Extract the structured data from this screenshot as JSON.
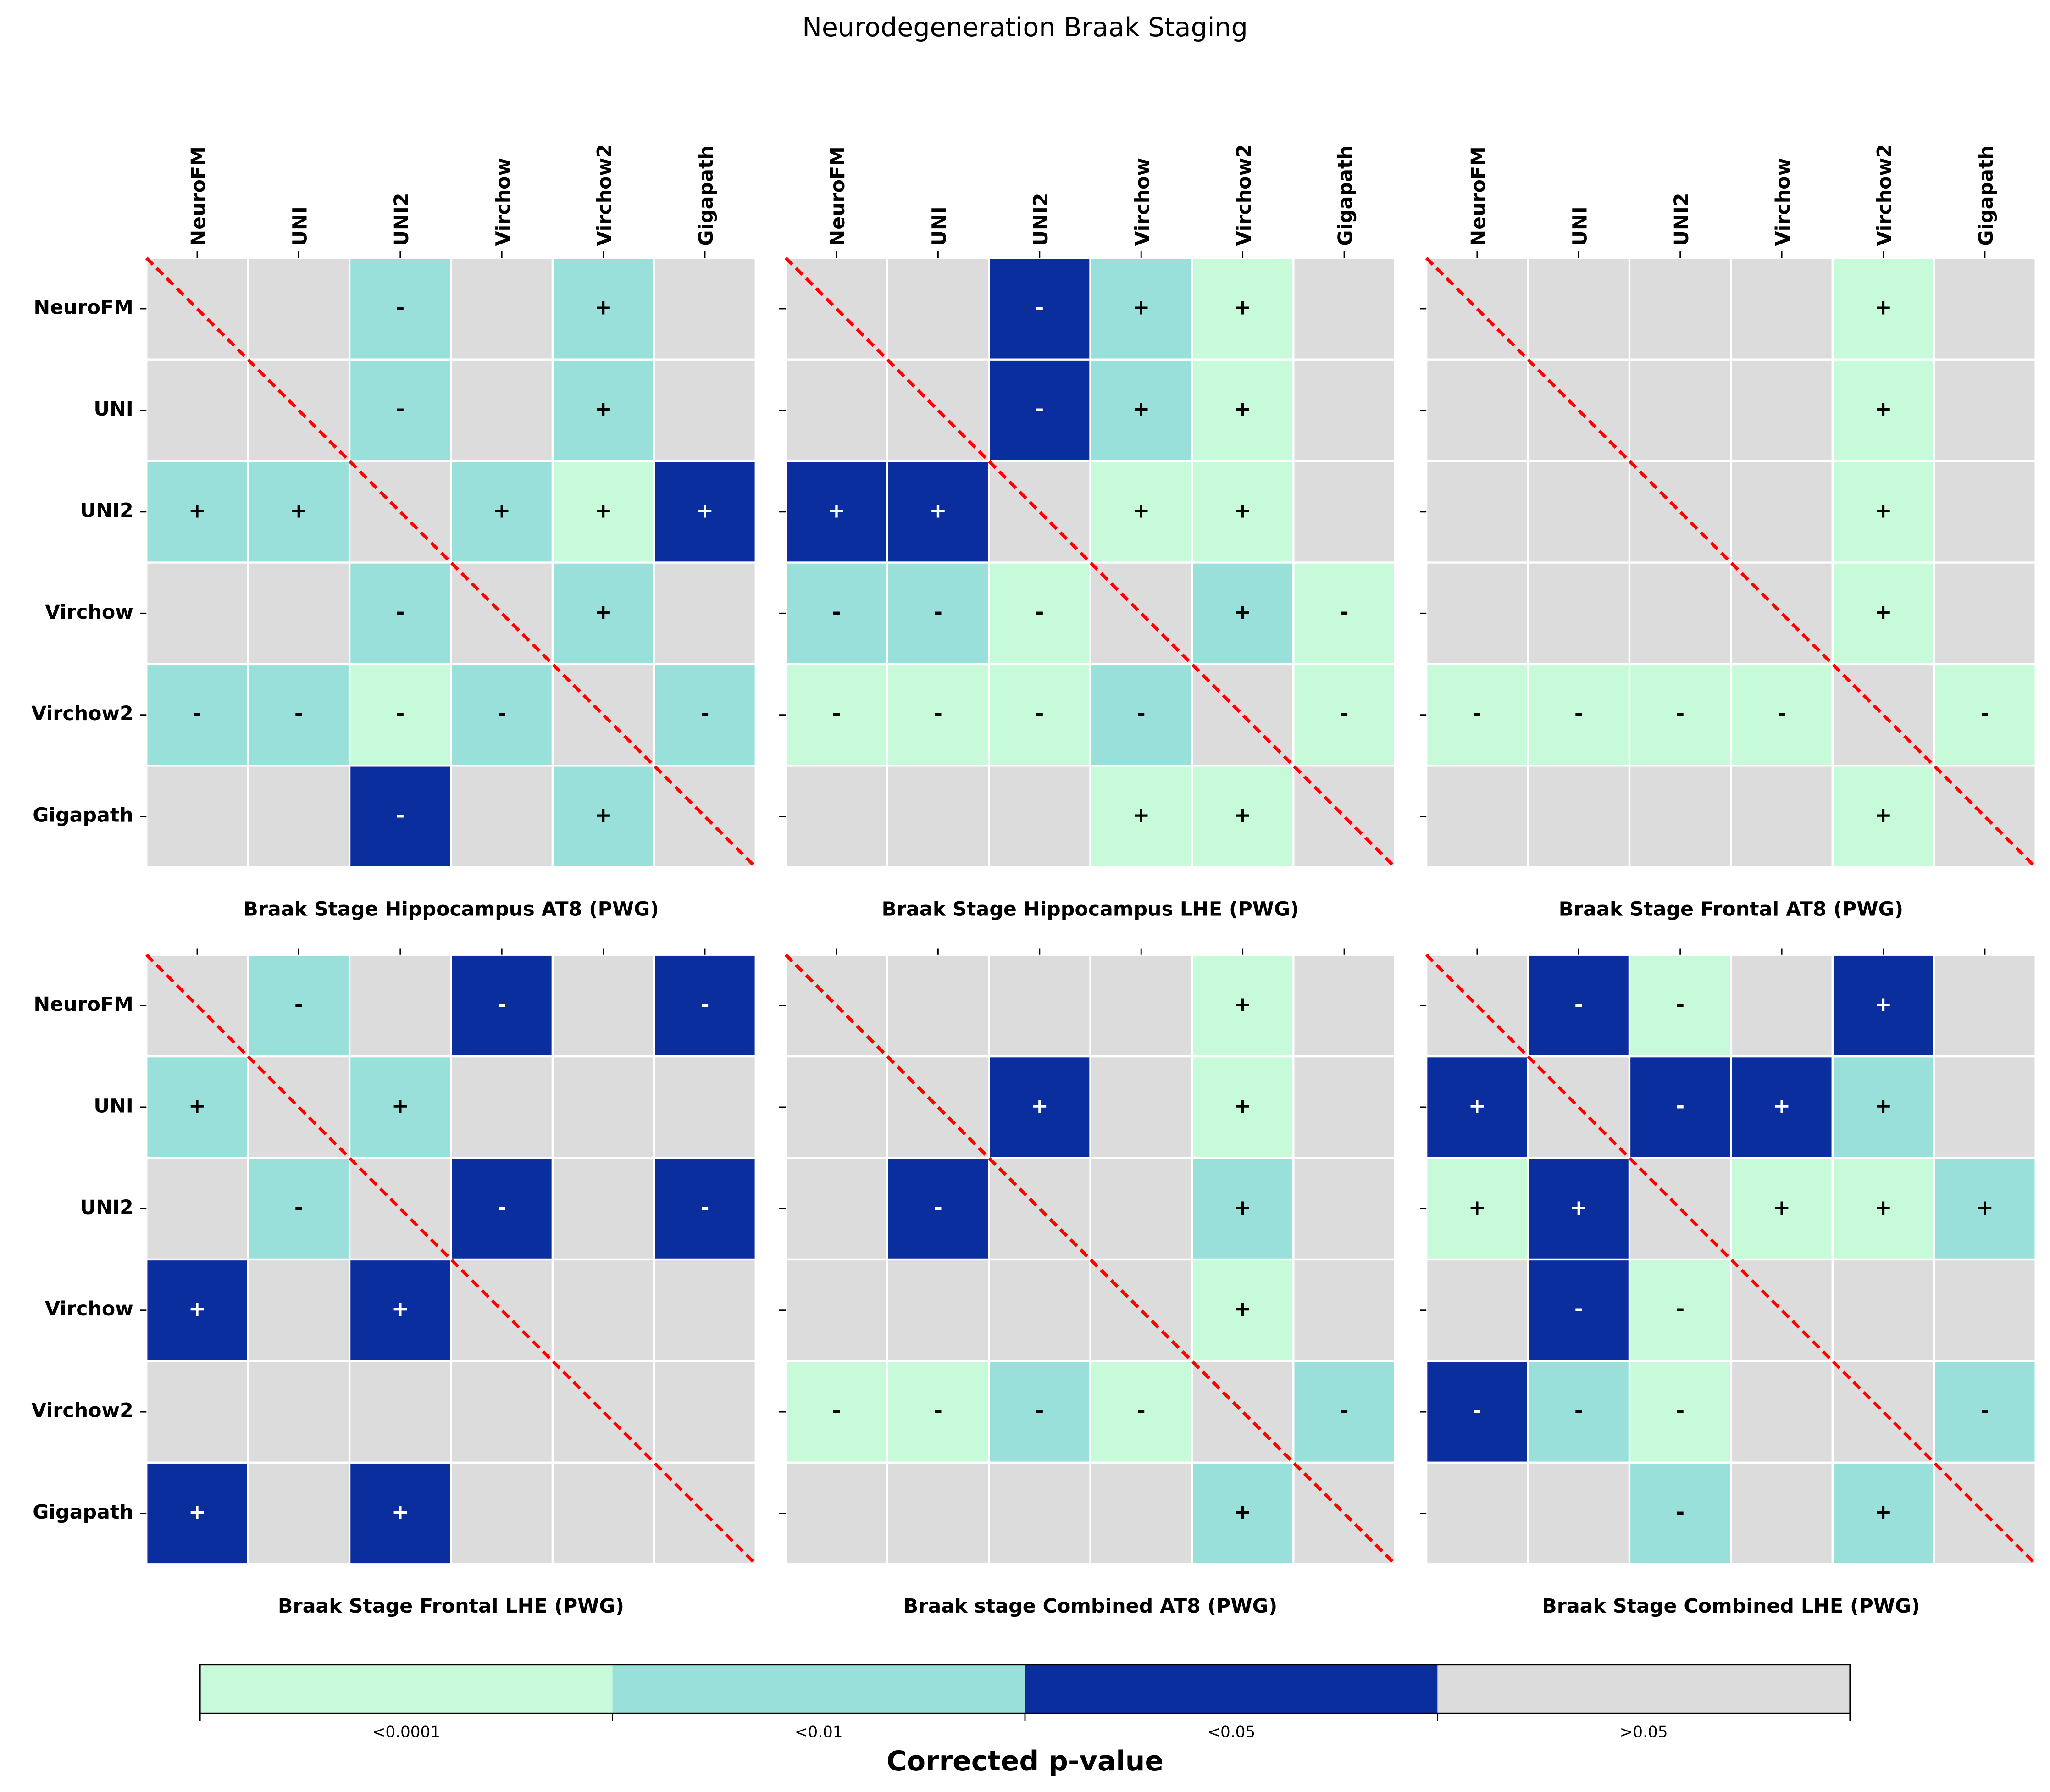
{
  "chart_data": {
    "type": "heatmap",
    "title": "Neurodegeneration Braak Staging",
    "categories": [
      "NeuroFM",
      "UNI",
      "UNI2",
      "Virchow",
      "Virchow2",
      "Gigapath"
    ],
    "legend_title": "Corrected p-value",
    "legend": [
      {
        "label": "<0.0001",
        "color": "#c7fad8"
      },
      {
        "label": "<0.01",
        "color": "#99e0da"
      },
      {
        "label": "<0.05",
        "color": "#0b2e9f"
      },
      {
        "label": ">0.05",
        "color": "#dcdcdc"
      }
    ],
    "diagonal_color": "#ff0000",
    "panels": [
      {
        "title": "Braak Stage Hippocampus AT8 (PWG)",
        "levels": [
          [
            ">0.05",
            ">0.05",
            "<0.01",
            ">0.05",
            "<0.01",
            ">0.05"
          ],
          [
            ">0.05",
            ">0.05",
            "<0.01",
            ">0.05",
            "<0.01",
            ">0.05"
          ],
          [
            "<0.01",
            "<0.01",
            ">0.05",
            "<0.01",
            "<0.0001",
            "<0.05"
          ],
          [
            ">0.05",
            ">0.05",
            "<0.01",
            ">0.05",
            "<0.01",
            ">0.05"
          ],
          [
            "<0.01",
            "<0.01",
            "<0.0001",
            "<0.01",
            ">0.05",
            "<0.01"
          ],
          [
            ">0.05",
            ">0.05",
            "<0.05",
            ">0.05",
            "<0.01",
            ">0.05"
          ]
        ],
        "signs": [
          [
            null,
            null,
            "-",
            null,
            "+",
            null
          ],
          [
            null,
            null,
            "-",
            null,
            "+",
            null
          ],
          [
            "+",
            "+",
            null,
            "+",
            "+",
            "+"
          ],
          [
            null,
            null,
            "-",
            null,
            "+",
            null
          ],
          [
            "-",
            "-",
            "-",
            "-",
            null,
            "-"
          ],
          [
            null,
            null,
            "-",
            null,
            "+",
            null
          ]
        ]
      },
      {
        "title": "Braak Stage Hippocampus LHE (PWG)",
        "levels": [
          [
            ">0.05",
            ">0.05",
            "<0.05",
            "<0.01",
            "<0.0001",
            ">0.05"
          ],
          [
            ">0.05",
            ">0.05",
            "<0.05",
            "<0.01",
            "<0.0001",
            ">0.05"
          ],
          [
            "<0.05",
            "<0.05",
            ">0.05",
            "<0.0001",
            "<0.0001",
            ">0.05"
          ],
          [
            "<0.01",
            "<0.01",
            "<0.0001",
            ">0.05",
            "<0.01",
            "<0.0001"
          ],
          [
            "<0.0001",
            "<0.0001",
            "<0.0001",
            "<0.01",
            ">0.05",
            "<0.0001"
          ],
          [
            ">0.05",
            ">0.05",
            ">0.05",
            "<0.0001",
            "<0.0001",
            ">0.05"
          ]
        ],
        "signs": [
          [
            null,
            null,
            "-",
            "+",
            "+",
            null
          ],
          [
            null,
            null,
            "-",
            "+",
            "+",
            null
          ],
          [
            "+",
            "+",
            null,
            "+",
            "+",
            null
          ],
          [
            "-",
            "-",
            "-",
            null,
            "+",
            "-"
          ],
          [
            "-",
            "-",
            "-",
            "-",
            null,
            "-"
          ],
          [
            null,
            null,
            null,
            "+",
            "+",
            null
          ]
        ]
      },
      {
        "title": "Braak Stage Frontal AT8 (PWG)",
        "levels": [
          [
            ">0.05",
            ">0.05",
            ">0.05",
            ">0.05",
            "<0.0001",
            ">0.05"
          ],
          [
            ">0.05",
            ">0.05",
            ">0.05",
            ">0.05",
            "<0.0001",
            ">0.05"
          ],
          [
            ">0.05",
            ">0.05",
            ">0.05",
            ">0.05",
            "<0.0001",
            ">0.05"
          ],
          [
            ">0.05",
            ">0.05",
            ">0.05",
            ">0.05",
            "<0.0001",
            ">0.05"
          ],
          [
            "<0.0001",
            "<0.0001",
            "<0.0001",
            "<0.0001",
            ">0.05",
            "<0.0001"
          ],
          [
            ">0.05",
            ">0.05",
            ">0.05",
            ">0.05",
            "<0.0001",
            ">0.05"
          ]
        ],
        "signs": [
          [
            null,
            null,
            null,
            null,
            "+",
            null
          ],
          [
            null,
            null,
            null,
            null,
            "+",
            null
          ],
          [
            null,
            null,
            null,
            null,
            "+",
            null
          ],
          [
            null,
            null,
            null,
            null,
            "+",
            null
          ],
          [
            "-",
            "-",
            "-",
            "-",
            null,
            "-"
          ],
          [
            null,
            null,
            null,
            null,
            "+",
            null
          ]
        ]
      },
      {
        "title": "Braak Stage Frontal LHE (PWG)",
        "levels": [
          [
            ">0.05",
            "<0.01",
            ">0.05",
            "<0.05",
            ">0.05",
            "<0.05"
          ],
          [
            "<0.01",
            ">0.05",
            "<0.01",
            ">0.05",
            ">0.05",
            ">0.05"
          ],
          [
            ">0.05",
            "<0.01",
            ">0.05",
            "<0.05",
            ">0.05",
            "<0.05"
          ],
          [
            "<0.05",
            ">0.05",
            "<0.05",
            ">0.05",
            ">0.05",
            ">0.05"
          ],
          [
            ">0.05",
            ">0.05",
            ">0.05",
            ">0.05",
            ">0.05",
            ">0.05"
          ],
          [
            "<0.05",
            ">0.05",
            "<0.05",
            ">0.05",
            ">0.05",
            ">0.05"
          ]
        ],
        "signs": [
          [
            null,
            "-",
            null,
            "-",
            null,
            "-"
          ],
          [
            "+",
            null,
            "+",
            null,
            null,
            null
          ],
          [
            null,
            "-",
            null,
            "-",
            null,
            "-"
          ],
          [
            "+",
            null,
            "+",
            null,
            null,
            null
          ],
          [
            null,
            null,
            null,
            null,
            null,
            null
          ],
          [
            "+",
            null,
            "+",
            null,
            null,
            null
          ]
        ]
      },
      {
        "title": "Braak stage Combined AT8 (PWG)",
        "levels": [
          [
            ">0.05",
            ">0.05",
            ">0.05",
            ">0.05",
            "<0.0001",
            ">0.05"
          ],
          [
            ">0.05",
            ">0.05",
            "<0.05",
            ">0.05",
            "<0.0001",
            ">0.05"
          ],
          [
            ">0.05",
            "<0.05",
            ">0.05",
            ">0.05",
            "<0.01",
            ">0.05"
          ],
          [
            ">0.05",
            ">0.05",
            ">0.05",
            ">0.05",
            "<0.0001",
            ">0.05"
          ],
          [
            "<0.0001",
            "<0.0001",
            "<0.01",
            "<0.0001",
            ">0.05",
            "<0.01"
          ],
          [
            ">0.05",
            ">0.05",
            ">0.05",
            ">0.05",
            "<0.01",
            ">0.05"
          ]
        ],
        "signs": [
          [
            null,
            null,
            null,
            null,
            "+",
            null
          ],
          [
            null,
            null,
            "+",
            null,
            "+",
            null
          ],
          [
            null,
            "-",
            null,
            null,
            "+",
            null
          ],
          [
            null,
            null,
            null,
            null,
            "+",
            null
          ],
          [
            "-",
            "-",
            "-",
            "-",
            null,
            "-"
          ],
          [
            null,
            null,
            null,
            null,
            "+",
            null
          ]
        ]
      },
      {
        "title": "Braak Stage Combined LHE (PWG)",
        "levels": [
          [
            ">0.05",
            "<0.05",
            "<0.0001",
            ">0.05",
            "<0.05",
            ">0.05"
          ],
          [
            "<0.05",
            ">0.05",
            "<0.05",
            "<0.05",
            "<0.01",
            ">0.05"
          ],
          [
            "<0.0001",
            "<0.05",
            ">0.05",
            "<0.0001",
            "<0.0001",
            "<0.01"
          ],
          [
            ">0.05",
            "<0.05",
            "<0.0001",
            ">0.05",
            ">0.05",
            ">0.05"
          ],
          [
            "<0.05",
            "<0.01",
            "<0.0001",
            ">0.05",
            ">0.05",
            "<0.01"
          ],
          [
            ">0.05",
            ">0.05",
            "<0.01",
            ">0.05",
            "<0.01",
            ">0.05"
          ]
        ],
        "signs": [
          [
            null,
            "-",
            "-",
            null,
            "+",
            null
          ],
          [
            "+",
            null,
            "-",
            "+",
            "+",
            null
          ],
          [
            "+",
            "+",
            null,
            "+",
            "+",
            "+"
          ],
          [
            null,
            "-",
            "-",
            null,
            null,
            null
          ],
          [
            "-",
            "-",
            "-",
            null,
            null,
            "-"
          ],
          [
            null,
            null,
            "-",
            null,
            "+",
            null
          ]
        ]
      }
    ]
  }
}
